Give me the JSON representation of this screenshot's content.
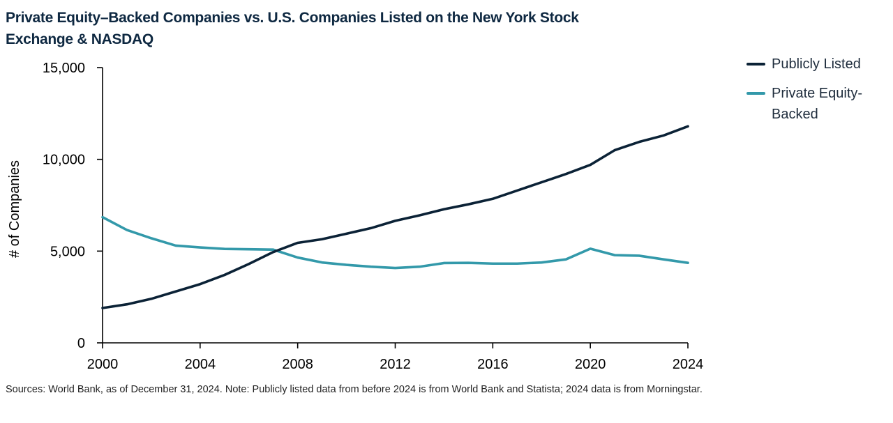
{
  "title": "Private Equity–Backed Companies vs. U.S. Companies Listed on the New York Stock Exchange & NASDAQ",
  "footnote": "Sources: World Bank, as of December 31, 2024. Note: Publicly listed data from before 2024 is from World Bank and Statista; 2024 data is from Morningstar.",
  "colors": {
    "publicly_listed": "#0b2236",
    "private_equity": "#3399aa",
    "axis": "#000000",
    "title": "#0e2841"
  },
  "legend": [
    {
      "label": "Publicly Listed",
      "series": "publicly_listed"
    },
    {
      "label": "Private Equity-Backed",
      "series": "private_equity"
    }
  ],
  "chart_data": {
    "type": "line",
    "title": "Private Equity–Backed Companies vs. U.S. Companies Listed on the New York Stock Exchange & NASDAQ",
    "xlabel": "",
    "ylabel": "# of Companies",
    "xlim": [
      2000,
      2024
    ],
    "ylim": [
      0,
      15000
    ],
    "x_ticks": [
      2000,
      2004,
      2008,
      2012,
      2016,
      2020,
      2024
    ],
    "x_tick_labels": [
      "2000",
      "2004",
      "2008",
      "2012",
      "2016",
      "2020",
      "2024"
    ],
    "y_ticks": [
      0,
      5000,
      10000,
      15000
    ],
    "y_tick_labels": [
      "0",
      "5,000",
      "10,000",
      "15,000"
    ],
    "grid": false,
    "legend_position": "right",
    "x": [
      2000,
      2001,
      2002,
      2003,
      2004,
      2005,
      2006,
      2007,
      2008,
      2009,
      2010,
      2011,
      2012,
      2013,
      2014,
      2015,
      2016,
      2017,
      2018,
      2019,
      2020,
      2021,
      2022,
      2023,
      2024
    ],
    "series": [
      {
        "name": "Publicly Listed",
        "key": "publicly_listed",
        "values": [
          1900,
          2100,
          2400,
          2800,
          3200,
          3700,
          4300,
          4950,
          5450,
          5650,
          5950,
          6250,
          6650,
          6950,
          7280,
          7550,
          7850,
          8300,
          8750,
          9200,
          9700,
          10500,
          10950,
          11300,
          11800
        ]
      },
      {
        "name": "Private Equity-Backed",
        "key": "private_equity",
        "values": [
          6850,
          6150,
          5700,
          5300,
          5200,
          5120,
          5100,
          5080,
          4650,
          4380,
          4250,
          4150,
          4080,
          4150,
          4350,
          4360,
          4320,
          4320,
          4380,
          4550,
          5130,
          4780,
          4750,
          4550,
          4360
        ]
      }
    ]
  }
}
